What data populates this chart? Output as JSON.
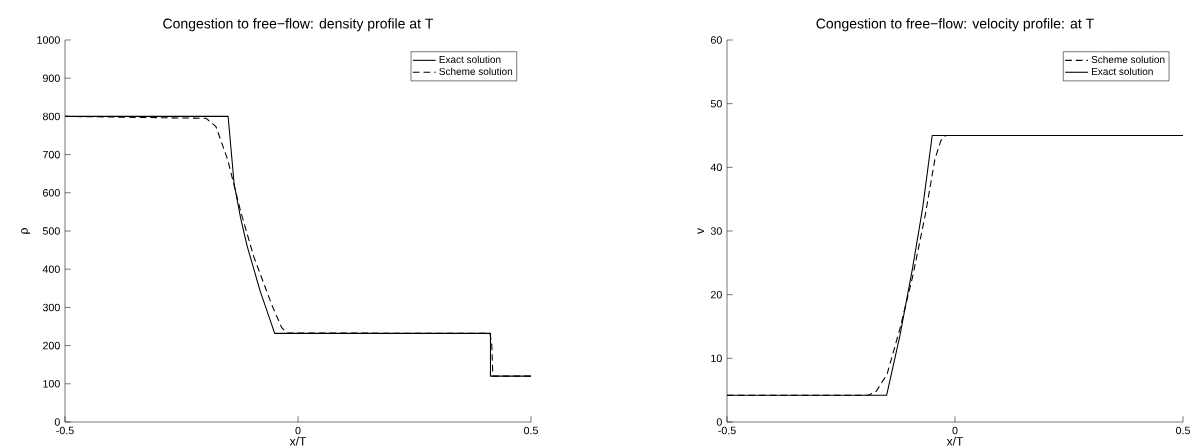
{
  "chart_data": [
    {
      "type": "line",
      "title": "Congestion to free−flow: density profile at T",
      "xlabel": "x/T",
      "ylabel": "ρ",
      "xlim": [
        -0.5,
        0.5
      ],
      "ylim": [
        0,
        1000
      ],
      "xticks": [
        -0.5,
        0,
        0.5
      ],
      "yticks": [
        0,
        100,
        200,
        300,
        400,
        500,
        600,
        700,
        800,
        900,
        1000
      ],
      "legend": "top right",
      "grid": false,
      "series": [
        {
          "name": "Exact solution",
          "color": "#000000",
          "line_style": "solid",
          "x": [
            -0.5,
            -0.15,
            -0.137,
            -0.123,
            -0.109,
            -0.081,
            -0.05,
            0.413,
            0.413,
            0.5
          ],
          "values": [
            800,
            800,
            623,
            533,
            460,
            342,
            232,
            232,
            120,
            120
          ]
        },
        {
          "name": "Scheme solution",
          "color": "#000000",
          "line_style": "dashed",
          "x": [
            -0.5,
            -0.197,
            -0.176,
            -0.151,
            -0.123,
            -0.095,
            -0.056,
            -0.035,
            -0.024,
            0.412,
            0.416,
            0.418,
            0.5
          ],
          "values": [
            800,
            795,
            773,
            687,
            551,
            433,
            306,
            247,
            233,
            232,
            200,
            120,
            120
          ]
        }
      ]
    },
    {
      "type": "line",
      "title": "Congestion to free−flow: velocity profile: at T",
      "xlabel": "x/T",
      "ylabel": "v",
      "xlim": [
        -0.5,
        0.5
      ],
      "ylim": [
        0,
        60
      ],
      "xticks": [
        -0.5,
        0,
        0.5
      ],
      "yticks": [
        0,
        10,
        20,
        30,
        40,
        50,
        60
      ],
      "legend": "top right",
      "grid": false,
      "series": [
        {
          "name": "Scheme solution",
          "color": "#000000",
          "line_style": "dashed",
          "x": [
            -0.5,
            -0.19,
            -0.173,
            -0.149,
            -0.121,
            -0.093,
            -0.065,
            -0.044,
            -0.031,
            -0.02,
            0.5
          ],
          "values": [
            4.2,
            4.2,
            4.8,
            7.5,
            14.6,
            22.8,
            32.6,
            41.3,
            44.2,
            45,
            45
          ]
        },
        {
          "name": "Exact solution",
          "color": "#000000",
          "line_style": "solid",
          "x": [
            -0.5,
            -0.15,
            -0.121,
            -0.093,
            -0.071,
            -0.05,
            0.5
          ],
          "values": [
            4.2,
            4.2,
            13.5,
            24.2,
            33.6,
            45,
            45
          ]
        }
      ]
    }
  ]
}
